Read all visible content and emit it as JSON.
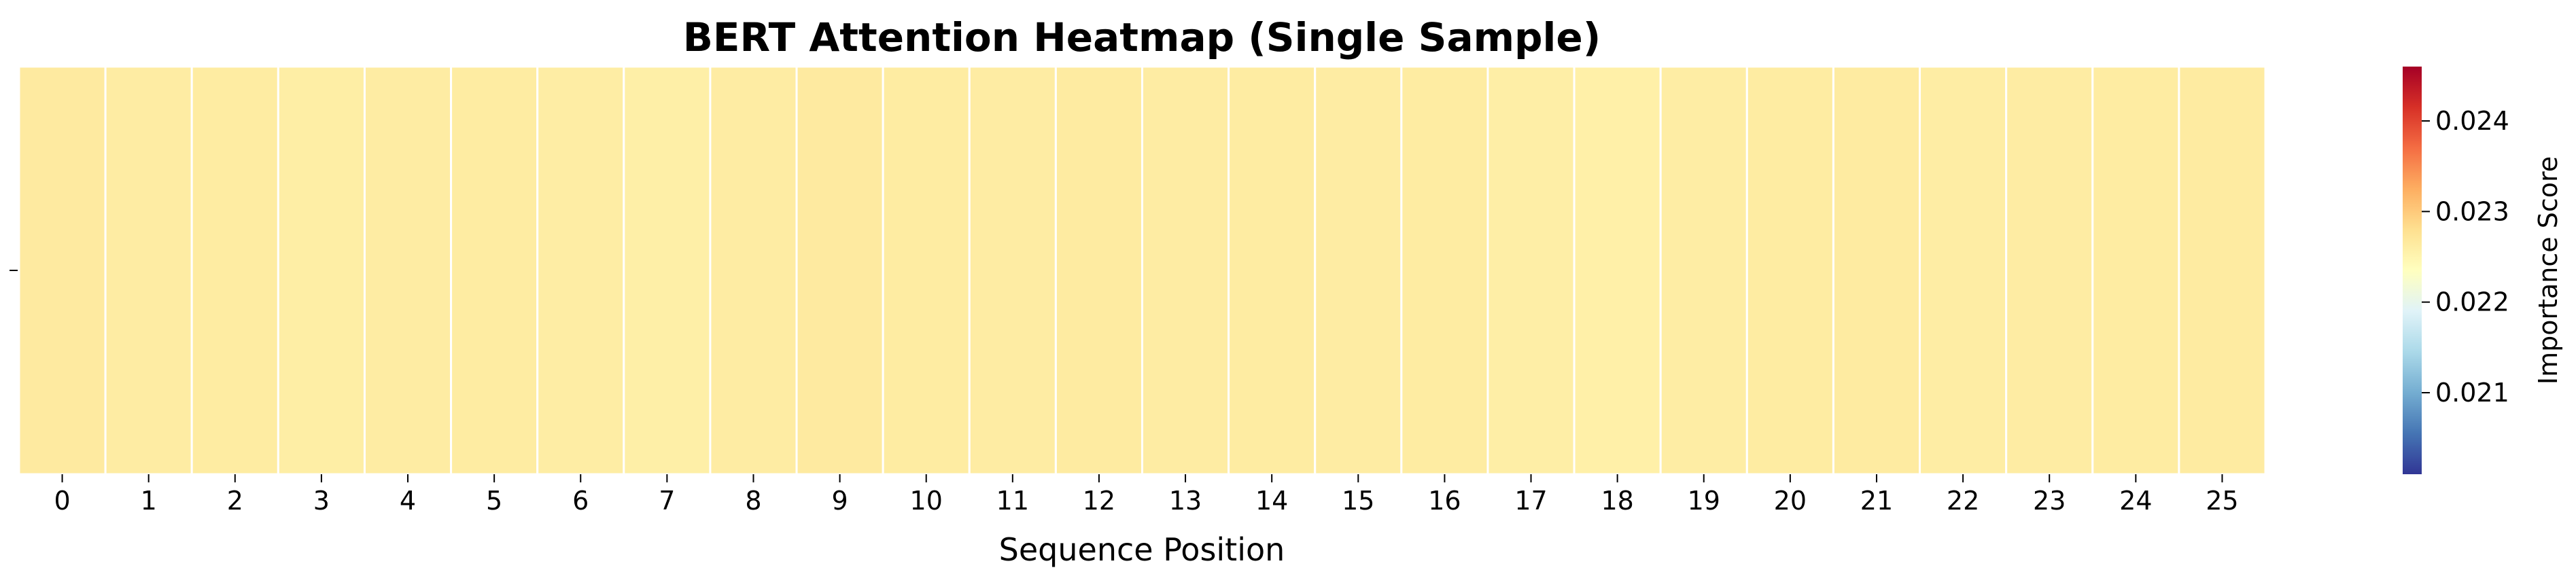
{
  "chart_data": {
    "type": "heatmap",
    "title": "BERT Attention Heatmap (Single Sample)",
    "xlabel": "Sequence Position",
    "ylabel": "",
    "x_ticks": [
      "0",
      "1",
      "2",
      "3",
      "4",
      "5",
      "6",
      "7",
      "8",
      "9",
      "10",
      "11",
      "12",
      "13",
      "14",
      "15",
      "16",
      "17",
      "18",
      "19",
      "20",
      "21",
      "22",
      "23",
      "24",
      "25"
    ],
    "y_ticks": [
      ""
    ],
    "values": [
      [
        0.02265,
        0.02262,
        0.02263,
        0.0226,
        0.02262,
        0.02263,
        0.02261,
        0.02258,
        0.02262,
        0.02265,
        0.02263,
        0.02262,
        0.02264,
        0.02262,
        0.02263,
        0.02262,
        0.02263,
        0.02259,
        0.02257,
        0.02261,
        0.02263,
        0.02264,
        0.02261,
        0.02262,
        0.02263,
        0.02264
      ]
    ],
    "colormap": "RdYlBu_r",
    "colormap_stops": [
      "#313695",
      "#4575b4",
      "#74add1",
      "#abd9e9",
      "#e0f3f8",
      "#ffffbf",
      "#fee090",
      "#fdae61",
      "#f46d43",
      "#d73027",
      "#a50026"
    ],
    "vmin": 0.0201,
    "vmax": 0.0246,
    "cell_border_color": "#ffffff",
    "colorbar": {
      "label": "Importance Score",
      "ticks": [
        0.021,
        0.022,
        0.023,
        0.024
      ],
      "tick_labels": [
        "0.021",
        "0.022",
        "0.023",
        "0.024"
      ]
    }
  }
}
